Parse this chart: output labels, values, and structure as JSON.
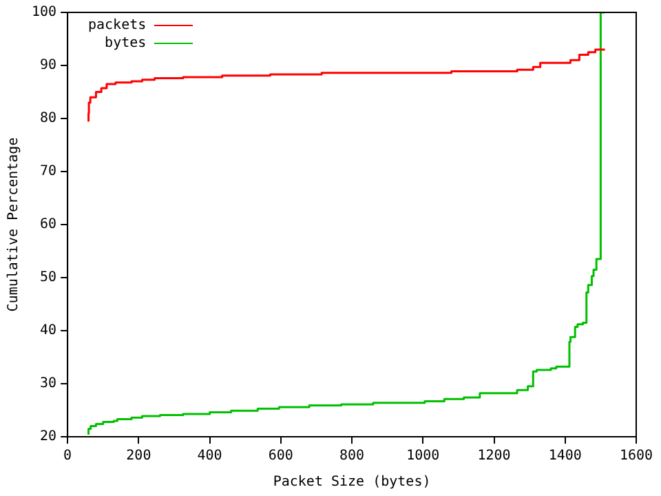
{
  "chart_data": {
    "type": "step",
    "xlabel": "Packet Size (bytes)",
    "ylabel": "Cumulative Percentage",
    "xlim": [
      0,
      1600
    ],
    "xticks": [
      0,
      200,
      400,
      600,
      800,
      1000,
      1200,
      1400,
      1600
    ],
    "ylim": [
      20,
      100
    ],
    "yticks": [
      20,
      30,
      40,
      50,
      60,
      70,
      80,
      90,
      100
    ],
    "grid": false,
    "legend": "top left",
    "marker": "none",
    "line_style": "solid",
    "series": [
      {
        "name": "packets",
        "color": "#ff0000",
        "x": [
          59,
          60,
          64,
          80,
          95,
          110,
          135,
          180,
          210,
          245,
          325,
          435,
          570,
          715,
          1080,
          1265,
          1310,
          1330,
          1415,
          1440,
          1465,
          1485,
          1500,
          1512
        ],
        "values": [
          79.4,
          81,
          83,
          84,
          85,
          85.7,
          86.5,
          86.8,
          87,
          87.3,
          87.6,
          87.8,
          88.1,
          88.3,
          88.6,
          88.9,
          89.2,
          89.7,
          90.5,
          91,
          92,
          92.5,
          93,
          93
        ]
      },
      {
        "name": "bytes",
        "color": "#00c000",
        "x": [
          59,
          65,
          80,
          100,
          130,
          140,
          180,
          210,
          260,
          325,
          400,
          460,
          535,
          595,
          680,
          770,
          860,
          1005,
          1060,
          1115,
          1160,
          1265,
          1295,
          1310,
          1320,
          1360,
          1375,
          1412,
          1415,
          1428,
          1435,
          1450,
          1460,
          1465,
          1475,
          1480,
          1488,
          1500,
          1510,
          1511
        ],
        "values": [
          20.4,
          21.5,
          22,
          22.4,
          22.8,
          23,
          23.3,
          23.6,
          23.9,
          24.1,
          24.3,
          24.6,
          24.9,
          25.3,
          25.6,
          25.9,
          26.1,
          26.4,
          26.7,
          27.1,
          27.4,
          28.2,
          28.8,
          29.5,
          32.3,
          32.6,
          32.9,
          33.2,
          37.9,
          38.8,
          40.7,
          41.2,
          41.5,
          47.2,
          48.6,
          50.3,
          51.5,
          53.5,
          100,
          100
        ]
      }
    ]
  }
}
